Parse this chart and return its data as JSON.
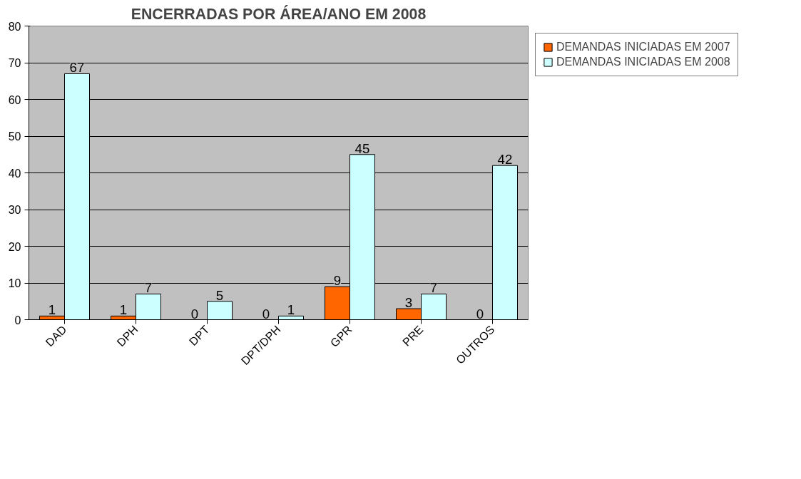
{
  "chart_data": {
    "type": "bar",
    "title": "ENCERRADAS POR ÁREA/ANO EM 2008",
    "categories": [
      "DAD",
      "DPH",
      "DPT",
      "DPT/DPH",
      "GPR",
      "PRE",
      "OUTROS"
    ],
    "series": [
      {
        "name": "DEMANDAS INICIADAS EM 2007",
        "color": "#ff6600",
        "values": [
          1,
          1,
          0,
          0,
          9,
          3,
          0
        ]
      },
      {
        "name": "DEMANDAS INICIADAS EM 2008",
        "color": "#ccffff",
        "values": [
          67,
          7,
          5,
          1,
          45,
          7,
          42
        ]
      }
    ],
    "ylim": [
      0,
      80
    ],
    "yticks": [
      0,
      10,
      20,
      30,
      40,
      50,
      60,
      70,
      80
    ],
    "grid": "y",
    "legend": "right",
    "data_labels": true
  }
}
